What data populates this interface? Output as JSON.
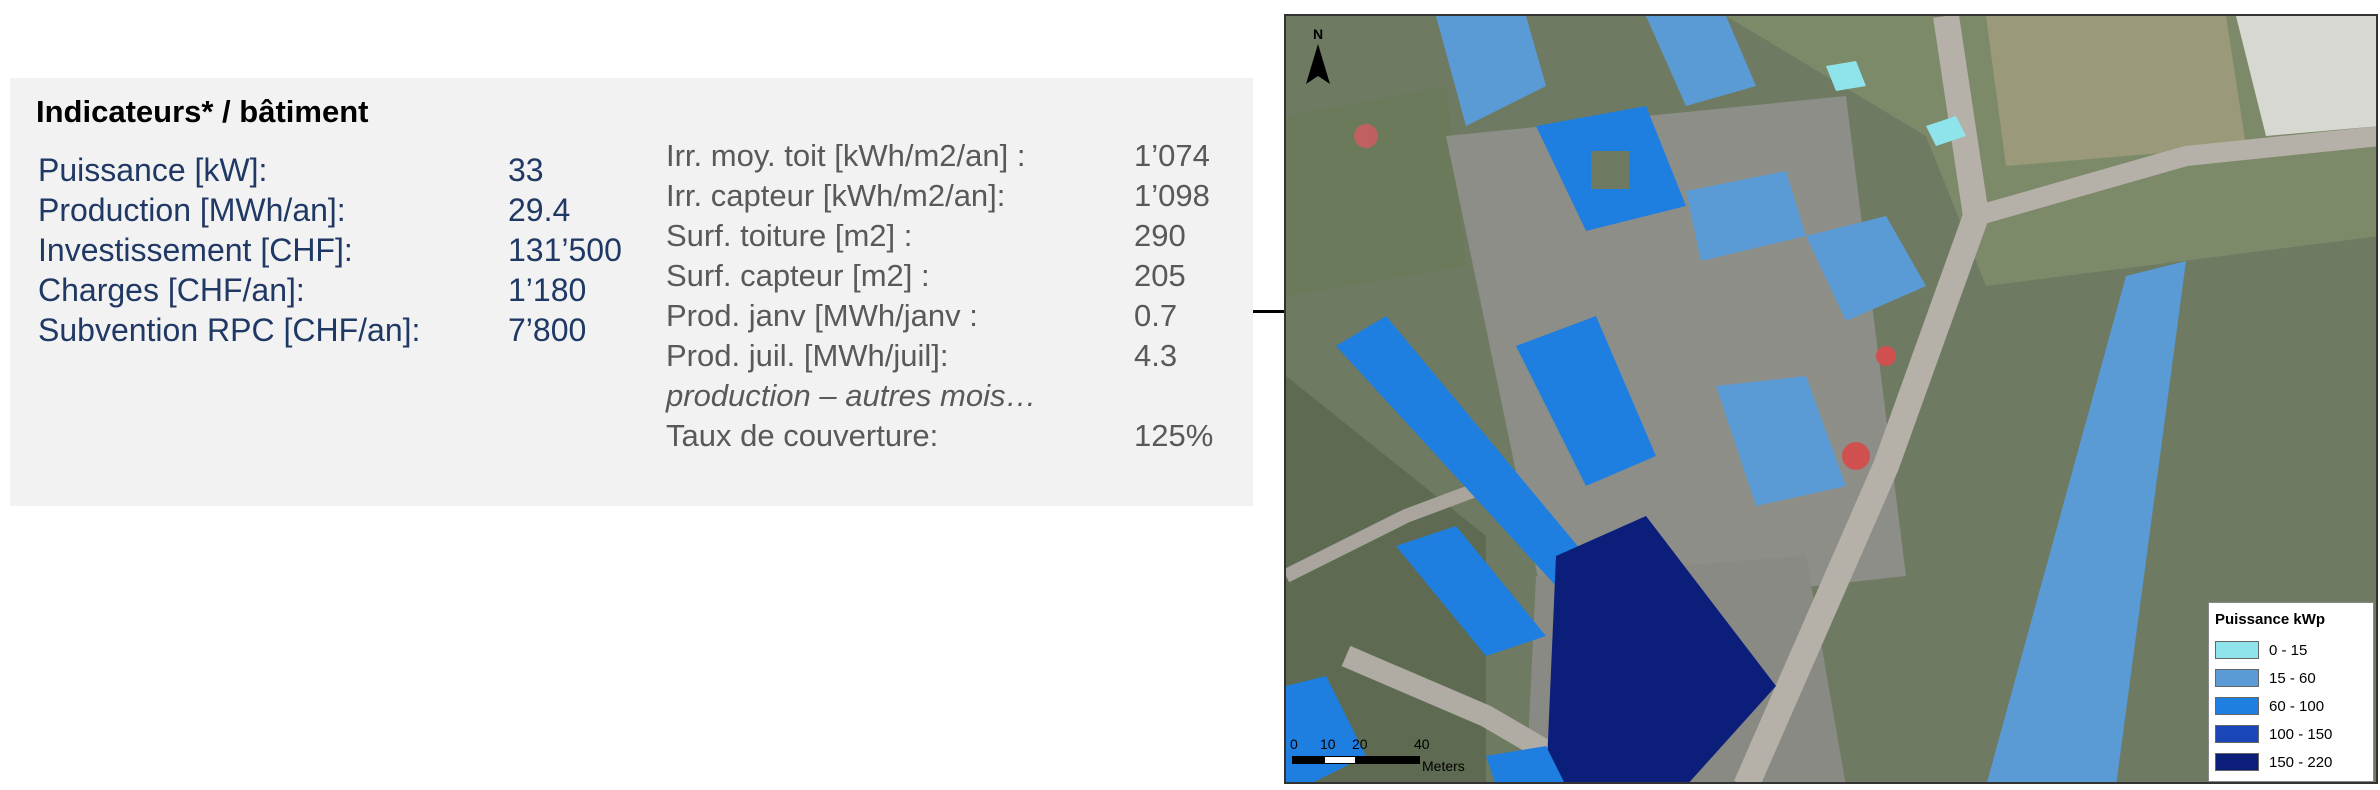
{
  "panel": {
    "title": "Indicateurs* / bâtiment",
    "left_rows": [
      {
        "label": "Puissance [kW]:",
        "value": "33"
      },
      {
        "label": "Production [MWh/an]:",
        "value": "29.4"
      },
      {
        "label": "Investissement [CHF]:",
        "value": "131’500"
      },
      {
        "label": "Charges [CHF/an]:",
        "value": "1’180"
      },
      {
        "label": "Subvention RPC [CHF/an]:",
        "value": "7’800"
      }
    ],
    "right_rows": [
      {
        "label": "Irr. moy. toit [kWh/m2/an] :",
        "value": "1’074"
      },
      {
        "label": "Irr. capteur [kWh/m2/an]:",
        "value": "1’098"
      },
      {
        "label": "Surf. toiture [m2] :",
        "value": "290"
      },
      {
        "label": "Surf. capteur [m2] :",
        "value": "205"
      },
      {
        "label": "Prod. janv [MWh/janv :",
        "value": "0.7"
      },
      {
        "label": "Prod. juil. [MWh/juil]:",
        "value": "4.3"
      }
    ],
    "note": "production – autres mois…",
    "coverage": {
      "label": "Taux de couverture:",
      "value": "125%"
    }
  },
  "map": {
    "north_label": "N",
    "scale": {
      "labels": [
        "0",
        "10",
        "20",
        "40"
      ],
      "unit": "Meters"
    },
    "legend": {
      "title": "Puissance kWp",
      "items": [
        {
          "label": "0 - 15",
          "color": "#8fe3ea"
        },
        {
          "label": "15 - 60",
          "color": "#5b9bd5"
        },
        {
          "label": "60 - 100",
          "color": "#1f7fe0"
        },
        {
          "label": "100 - 150",
          "color": "#1a46b8"
        },
        {
          "label": "150 - 220",
          "color": "#0b1f7a"
        }
      ]
    }
  }
}
